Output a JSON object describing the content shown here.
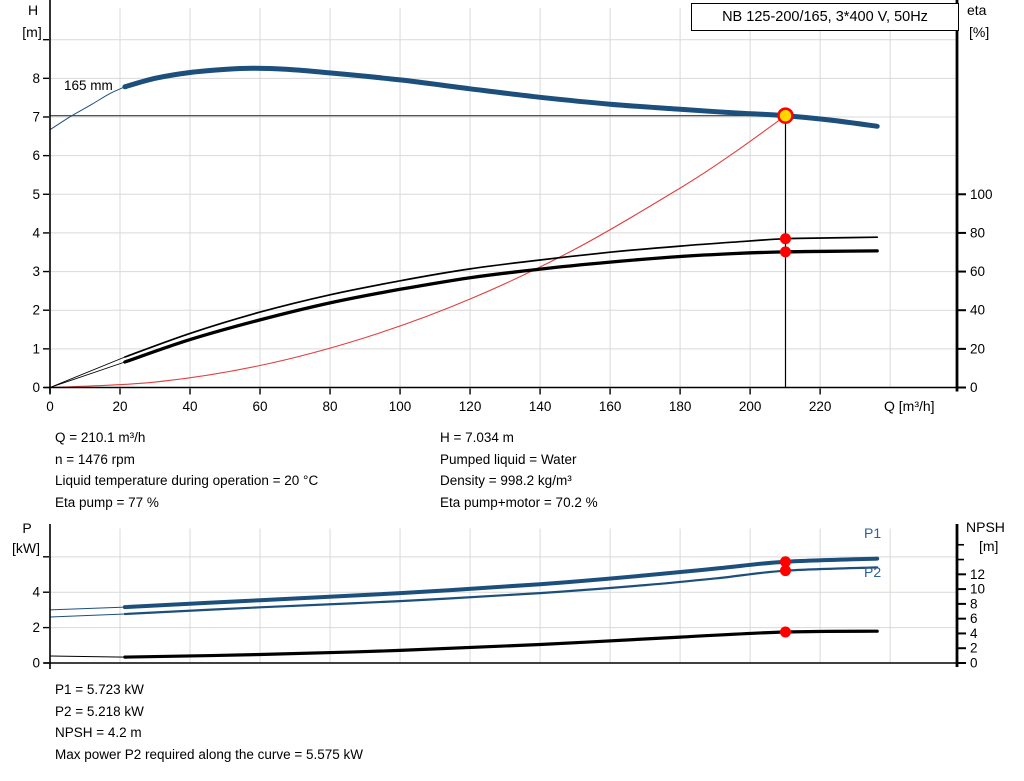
{
  "header": {
    "title_box": "NB 125-200/165, 3*400 V, 50Hz"
  },
  "labels": {
    "h": "H",
    "h_unit": "[m]",
    "eta": "eta",
    "eta_unit": "[%]",
    "q_axis": "Q [m³/h]",
    "impeller": "165 mm",
    "p": "P",
    "p_unit": "[kW]",
    "npsh": "NPSH",
    "npsh_unit": "[m]",
    "p1": "P1",
    "p2": "P2"
  },
  "info": {
    "top_left": [
      "Q = 210.1 m³/h",
      "n = 1476 rpm",
      "Liquid temperature during operation = 20 °C",
      "Eta pump = 77 %"
    ],
    "top_right": [
      "H = 7.034 m",
      "Pumped liquid = Water",
      "Density = 998.2 kg/m³",
      "Eta pump+motor = 70.2 %"
    ],
    "bottom": [
      "P1 = 5.723 kW",
      "P2 = 5.218 kW",
      "NPSH = 4.2 m",
      "Max power P2 required along the curve = 5.575 kW"
    ]
  },
  "colors": {
    "curve_blue": "#1d4f7c",
    "label_blue": "#2a5fa0",
    "marker_red": "#ff0000",
    "duty_yellow": "#ffd800",
    "system_red": "#e04040",
    "grid": "#d9d9d9",
    "axis": "#000000",
    "op_line": "#3c3c3c"
  },
  "chart_data": [
    {
      "name": "head-efficiency-chart",
      "type": "line",
      "title": "NB 125-200/165, 3*400 V, 50Hz",
      "x_axis": {
        "label": "Q [m³/h]",
        "range": [
          0,
          259.1
        ],
        "ticks": [
          0,
          20,
          40,
          60,
          80,
          100,
          120,
          140,
          160,
          180,
          200,
          220
        ],
        "grid": [
          20,
          40,
          60,
          80,
          100,
          120,
          140,
          160,
          180,
          200,
          220,
          240
        ],
        "show_labels": true
      },
      "y_left": {
        "label": "H [m]",
        "range": [
          0,
          9.82
        ],
        "ticks": [
          0,
          1,
          2,
          3,
          4,
          5,
          6,
          7,
          8
        ],
        "minor_ticks": [
          9
        ],
        "grid": [
          1,
          2,
          3,
          4,
          5,
          6,
          7,
          8,
          9
        ]
      },
      "y_right": {
        "label": "eta [%]",
        "range": [
          0,
          196.4
        ],
        "ticks": [
          0,
          20,
          40,
          60,
          80,
          100
        ],
        "minor_ticks": []
      },
      "series": [
        {
          "name": "system-curve",
          "axis": "left",
          "color_key": "system_red",
          "width": 1.1,
          "points": [
            [
              0,
              0
            ],
            [
              30,
              0.14
            ],
            [
              60,
              0.57
            ],
            [
              90,
              1.29
            ],
            [
              120,
              2.29
            ],
            [
              150,
              3.58
            ],
            [
              180,
              5.16
            ],
            [
              195,
              6.05
            ],
            [
              210.1,
              7.034
            ]
          ]
        },
        {
          "name": "op-horizontal-line",
          "axis": "left",
          "color_key": "op_line",
          "width": 1.2,
          "points": [
            [
              0,
              7.034
            ],
            [
              210.1,
              7.034
            ]
          ]
        },
        {
          "name": "op-vertical-line",
          "axis": "left",
          "color_key": "axis",
          "width": 1.2,
          "points": [
            [
              210.1,
              7.034
            ],
            [
              210.1,
              0
            ]
          ]
        },
        {
          "name": "head-curve-lead",
          "axis": "left",
          "color_key": "curve_blue",
          "width": 1,
          "points": [
            [
              0,
              6.67
            ],
            [
              6,
              7.02
            ],
            [
              12,
              7.33
            ],
            [
              17,
              7.6
            ],
            [
              21.4,
              7.78
            ]
          ]
        },
        {
          "name": "head-curve-165mm",
          "axis": "left",
          "color_key": "curve_blue",
          "width": 5,
          "points": [
            [
              21.4,
              7.78
            ],
            [
              30,
              8.0
            ],
            [
              40,
              8.15
            ],
            [
              50,
              8.23
            ],
            [
              58,
              8.26
            ],
            [
              68,
              8.23
            ],
            [
              80,
              8.14
            ],
            [
              100,
              7.96
            ],
            [
              120,
              7.73
            ],
            [
              140,
              7.51
            ],
            [
              160,
              7.33
            ],
            [
              180,
              7.2
            ],
            [
              195,
              7.11
            ],
            [
              210.1,
              7.034
            ],
            [
              223,
              6.92
            ],
            [
              236.3,
              6.76
            ]
          ]
        },
        {
          "name": "eta-pump-lead",
          "axis": "right",
          "color_key": "axis",
          "width": 0.9,
          "points": [
            [
              0,
              0
            ],
            [
              21.4,
              15.8
            ]
          ]
        },
        {
          "name": "eta-pump-curve",
          "axis": "right",
          "color_key": "axis",
          "width": 1.7,
          "points": [
            [
              21.4,
              15.8
            ],
            [
              40,
              28
            ],
            [
              60,
              39
            ],
            [
              80,
              48
            ],
            [
              100,
              55.2
            ],
            [
              120,
              61.4
            ],
            [
              140,
              66
            ],
            [
              160,
              70
            ],
            [
              180,
              73.2
            ],
            [
              195,
              75.2
            ],
            [
              210.1,
              77
            ],
            [
              223,
              77.4
            ],
            [
              236.3,
              77.8
            ]
          ]
        },
        {
          "name": "eta-pump-motor-lead",
          "axis": "right",
          "color_key": "axis",
          "width": 0.9,
          "points": [
            [
              0,
              0
            ],
            [
              21.4,
              13.2
            ]
          ]
        },
        {
          "name": "eta-pump-motor-curve",
          "axis": "right",
          "color_key": "axis",
          "width": 3.3,
          "points": [
            [
              21.4,
              13.2
            ],
            [
              40,
              24.8
            ],
            [
              60,
              35
            ],
            [
              80,
              43.8
            ],
            [
              100,
              50.8
            ],
            [
              120,
              56.8
            ],
            [
              140,
              61.3
            ],
            [
              160,
              64.9
            ],
            [
              180,
              67.8
            ],
            [
              195,
              69.3
            ],
            [
              210.1,
              70.2
            ],
            [
              223,
              70.5
            ],
            [
              236.3,
              70.7
            ]
          ]
        }
      ],
      "markers": [
        {
          "name": "duty-point",
          "axis": "left",
          "q": 210.1,
          "v": 7.034,
          "style": "duty"
        },
        {
          "name": "eta-pump-point",
          "axis": "right",
          "q": 210.1,
          "v": 77,
          "style": "dot"
        },
        {
          "name": "eta-pump-motor-point",
          "axis": "right",
          "q": 210.1,
          "v": 70.2,
          "style": "dot"
        }
      ],
      "operating_point": {
        "q": 210.1,
        "h": 7.034,
        "eta_pump": 77,
        "eta_pump_motor": 70.2
      }
    },
    {
      "name": "power-npsh-chart",
      "type": "line",
      "x_axis": {
        "label": "",
        "range": [
          0,
          259.1
        ],
        "ticks": [],
        "grid": [
          20,
          40,
          60,
          80,
          100,
          120,
          140,
          160,
          180,
          200,
          220,
          240
        ],
        "show_labels": false
      },
      "y_left": {
        "label": "P [kW]",
        "range": [
          0,
          7.6
        ],
        "ticks": [
          0,
          2,
          4
        ],
        "minor_ticks": [
          6
        ],
        "grid": [
          2,
          4,
          6
        ]
      },
      "y_right": {
        "label": "NPSH [m]",
        "range": [
          0,
          18.2
        ],
        "ticks": [
          0,
          2,
          4,
          6,
          8,
          10,
          12
        ],
        "minor_ticks": [
          14,
          16
        ]
      },
      "series": [
        {
          "name": "p1-curve-lead",
          "axis": "left",
          "color_key": "curve_blue",
          "width": 1,
          "points": [
            [
              0,
              3.0
            ],
            [
              21.4,
              3.16
            ]
          ]
        },
        {
          "name": "p1-curve",
          "axis": "left",
          "color_key": "curve_blue",
          "width": 4,
          "points": [
            [
              21.4,
              3.16
            ],
            [
              60,
              3.55
            ],
            [
              100,
              3.95
            ],
            [
              140,
              4.45
            ],
            [
              170,
              4.95
            ],
            [
              191,
              5.35
            ],
            [
              210.1,
              5.723
            ],
            [
              236.3,
              5.9
            ]
          ]
        },
        {
          "name": "p2-curve-lead",
          "axis": "left",
          "color_key": "curve_blue",
          "width": 1,
          "points": [
            [
              0,
              2.6
            ],
            [
              21.4,
              2.77
            ]
          ]
        },
        {
          "name": "p2-curve",
          "axis": "left",
          "color_key": "curve_blue",
          "width": 2.2,
          "points": [
            [
              21.4,
              2.77
            ],
            [
              60,
              3.15
            ],
            [
              100,
              3.5
            ],
            [
              140,
              3.95
            ],
            [
              170,
              4.4
            ],
            [
              191,
              4.8
            ],
            [
              210.1,
              5.218
            ],
            [
              236.3,
              5.4
            ]
          ]
        },
        {
          "name": "npsh-curve-lead",
          "axis": "right",
          "color_key": "axis",
          "width": 1,
          "points": [
            [
              0,
              0.95
            ],
            [
              21.4,
              0.8
            ]
          ]
        },
        {
          "name": "npsh-curve",
          "axis": "right",
          "color_key": "axis",
          "width": 3.2,
          "points": [
            [
              21.4,
              0.8
            ],
            [
              60,
              1.15
            ],
            [
              100,
              1.7
            ],
            [
              140,
              2.5
            ],
            [
              180,
              3.5
            ],
            [
              210.1,
              4.2
            ],
            [
              236.3,
              4.3
            ]
          ]
        }
      ],
      "markers": [
        {
          "name": "p1-point",
          "axis": "left",
          "q": 210.1,
          "v": 5.723,
          "style": "dot"
        },
        {
          "name": "p2-point",
          "axis": "left",
          "q": 210.1,
          "v": 5.218,
          "style": "dot"
        },
        {
          "name": "npsh-point",
          "axis": "right",
          "q": 210.1,
          "v": 4.2,
          "style": "dot"
        }
      ],
      "operating_point": {
        "q": 210.1,
        "p1_kw": 5.723,
        "p2_kw": 5.218,
        "npsh_m": 4.2
      }
    }
  ]
}
